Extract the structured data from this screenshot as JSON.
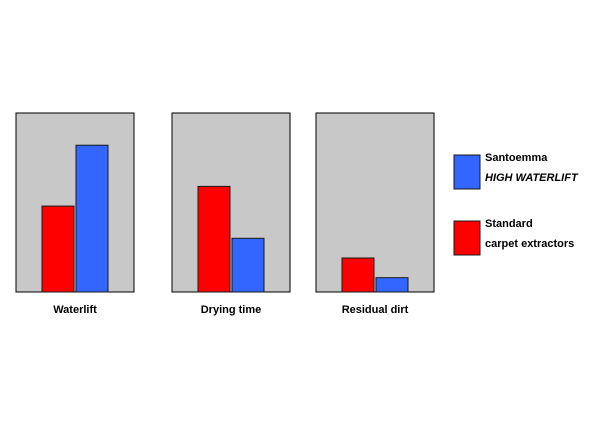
{
  "chart_data": {
    "type": "bar",
    "title": "",
    "xlabel": "",
    "ylabel": "",
    "grid": false,
    "legend_position": "right",
    "ylim": [
      0,
      100
    ],
    "panel_color": "#c8c8c8",
    "categories": [
      "Waterlift",
      "Drying time",
      "Residual dirt"
    ],
    "series": [
      {
        "key": "standard",
        "color": "#ff0000",
        "legend_lines": [
          "Standard",
          "carpet extractors"
        ],
        "legend_italic": [
          false,
          false
        ],
        "values": [
          48,
          59,
          19
        ]
      },
      {
        "key": "santoemma",
        "color": "#3366ff",
        "legend_lines": [
          "Santoemma",
          "HIGH WATERLIFT"
        ],
        "legend_italic": [
          false,
          true
        ],
        "values": [
          82,
          30,
          8
        ]
      }
    ],
    "legend_order": [
      "santoemma",
      "standard"
    ]
  }
}
